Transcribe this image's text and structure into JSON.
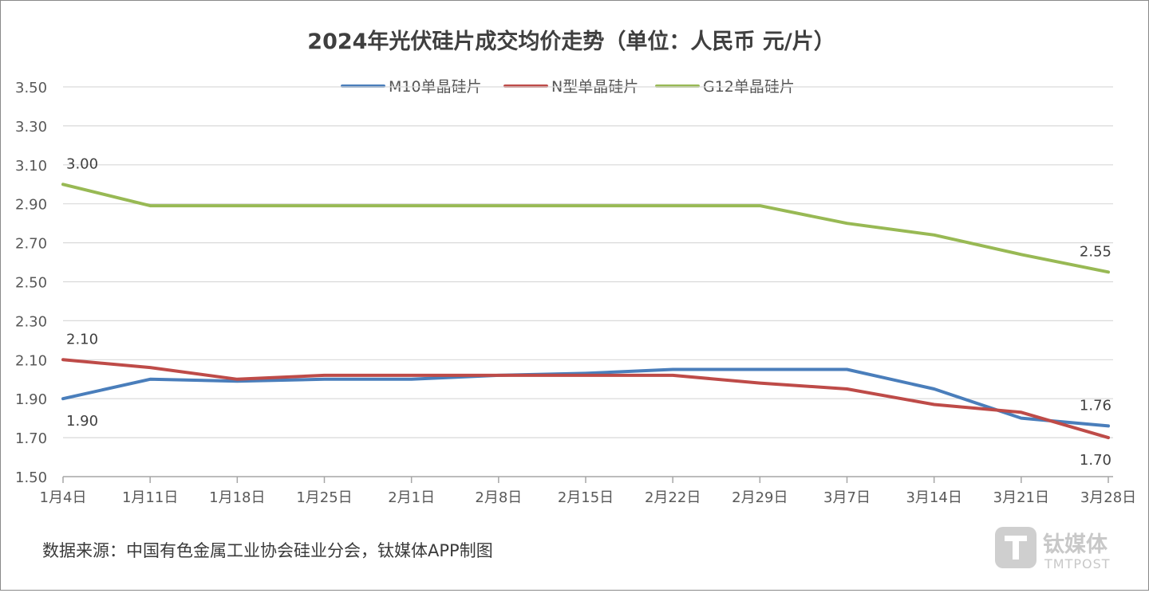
{
  "chart_data": {
    "type": "line",
    "title": "2024年光伏硅片成交均价走势（单位：人民币 元/片）",
    "categories": [
      "1月4日",
      "1月11日",
      "1月18日",
      "1月25日",
      "2月1日",
      "2月8日",
      "2月15日",
      "2月22日",
      "2月29日",
      "3月7日",
      "3月14日",
      "3月21日",
      "3月28日"
    ],
    "ylim": [
      1.5,
      3.5
    ],
    "yticks": [
      "1.50",
      "1.70",
      "1.90",
      "2.10",
      "2.30",
      "2.50",
      "2.70",
      "2.90",
      "3.10",
      "3.30",
      "3.50"
    ],
    "grid": true,
    "legend_position": "top-center",
    "series": [
      {
        "name": "M10单晶硅片",
        "color": "#4a7ebb",
        "values": [
          1.9,
          2.0,
          1.99,
          2.0,
          2.0,
          2.02,
          2.03,
          2.05,
          2.05,
          2.05,
          1.95,
          1.8,
          1.76
        ]
      },
      {
        "name": "N型单晶硅片",
        "color": "#be4b48",
        "values": [
          2.1,
          2.06,
          2.0,
          2.02,
          2.02,
          2.02,
          2.02,
          2.02,
          1.98,
          1.95,
          1.87,
          1.83,
          1.7
        ]
      },
      {
        "name": "G12单晶硅片",
        "color": "#98b954",
        "values": [
          3.0,
          2.89,
          2.89,
          2.89,
          2.89,
          2.89,
          2.89,
          2.89,
          2.89,
          2.8,
          2.74,
          2.64,
          2.55
        ]
      }
    ],
    "annotations": [
      {
        "series": 2,
        "index": 0,
        "text": "3.00",
        "position": "above"
      },
      {
        "series": 2,
        "index": 12,
        "text": "2.55",
        "position": "above"
      },
      {
        "series": 1,
        "index": 0,
        "text": "2.10",
        "position": "above"
      },
      {
        "series": 0,
        "index": 0,
        "text": "1.90",
        "position": "below"
      },
      {
        "series": 0,
        "index": 12,
        "text": "1.76",
        "position": "above"
      },
      {
        "series": 1,
        "index": 12,
        "text": "1.70",
        "position": "below"
      }
    ]
  },
  "source_note": "数据来源：中国有色金属工业协会硅业分会，钛媒体APP制图",
  "watermark": {
    "icon": "tmtpost-logo-icon",
    "text": "钛媒体",
    "subtext": "TMTPOST"
  }
}
